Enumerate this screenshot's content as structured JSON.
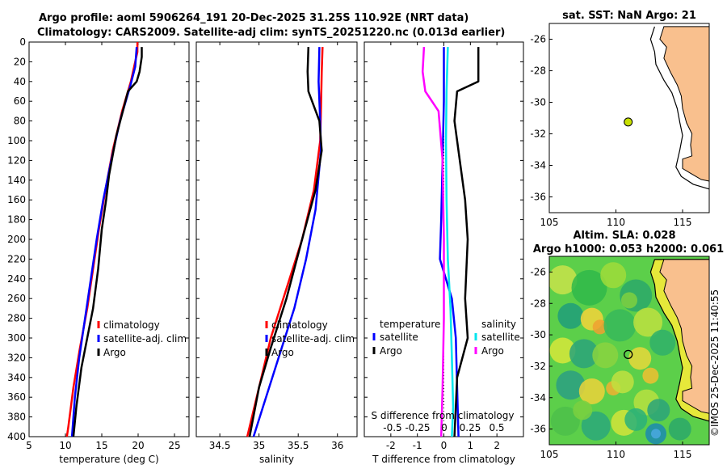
{
  "header": {
    "line1": "Argo profile: aoml 5906264_191 20-Dec-2025 31.25S 110.92E (NRT data)",
    "line2": "Climatology: CARS2009. Satellite-adj clim: synTS_20251220.nc (0.013d earlier)"
  },
  "colors": {
    "climatology": "#ff0000",
    "satellite": "#0000ff",
    "argo": "#000000",
    "sat_salinity": "#00e5ee",
    "argo_salinity": "#ff00ff",
    "land": "#f9c08e",
    "shelf": "#ffffff"
  },
  "chart_data": [
    {
      "id": "temperature",
      "type": "line",
      "xlabel": "temperature (deg C)",
      "ylabel": "",
      "xlim": [
        5,
        27
      ],
      "ylim": [
        0,
        400
      ],
      "y_reversed": true,
      "xticks": [
        5,
        10,
        15,
        20,
        25
      ],
      "yticks": [
        0,
        20,
        40,
        60,
        80,
        100,
        120,
        140,
        160,
        180,
        200,
        220,
        240,
        260,
        280,
        300,
        320,
        340,
        360,
        380,
        400
      ],
      "legend": {
        "position": "right",
        "entries": [
          "climatology",
          "satellite-adj. clim",
          "Argo"
        ]
      },
      "series": [
        {
          "name": "climatology",
          "color": "#ff0000",
          "points": [
            [
              19.9,
              0
            ],
            [
              19.9,
              10
            ],
            [
              19.0,
              40
            ],
            [
              17.8,
              70
            ],
            [
              16.5,
              110
            ],
            [
              15.5,
              150
            ],
            [
              14.6,
              190
            ],
            [
              13.8,
              230
            ],
            [
              13.0,
              270
            ],
            [
              12.0,
              310
            ],
            [
              11.1,
              350
            ],
            [
              10.4,
              390
            ],
            [
              10.2,
              400
            ]
          ]
        },
        {
          "name": "satellite-adj. clim",
          "color": "#0000ff",
          "points": [
            [
              19.8,
              5
            ],
            [
              19.6,
              25
            ],
            [
              18.9,
              45
            ],
            [
              17.5,
              80
            ],
            [
              16.3,
              120
            ],
            [
              15.2,
              160
            ],
            [
              14.3,
              200
            ],
            [
              13.5,
              240
            ],
            [
              12.7,
              280
            ],
            [
              11.9,
              320
            ],
            [
              11.3,
              360
            ],
            [
              10.9,
              400
            ]
          ]
        },
        {
          "name": "Argo",
          "color": "#000000",
          "points": [
            [
              20.5,
              5
            ],
            [
              20.5,
              15
            ],
            [
              20.2,
              30
            ],
            [
              19.8,
              40
            ],
            [
              18.6,
              50
            ],
            [
              17.9,
              70
            ],
            [
              17.0,
              95
            ],
            [
              16.5,
              115
            ],
            [
              16.0,
              135
            ],
            [
              15.6,
              160
            ],
            [
              15.0,
              190
            ],
            [
              14.5,
              230
            ],
            [
              13.8,
              270
            ],
            [
              13.0,
              300
            ],
            [
              12.2,
              330
            ],
            [
              11.5,
              370
            ],
            [
              11.1,
              400
            ]
          ]
        }
      ]
    },
    {
      "id": "salinity",
      "type": "line",
      "xlabel": "salinity",
      "ylabel": "",
      "xlim": [
        34.2,
        36.25
      ],
      "ylim": [
        0,
        400
      ],
      "y_reversed": true,
      "xticks": [
        34.5,
        35,
        35.5,
        36
      ],
      "legend": {
        "position": "right",
        "entries": [
          "climatology",
          "satellite-adj. clim",
          "Argo"
        ]
      },
      "series": [
        {
          "name": "climatology",
          "color": "#ff0000",
          "points": [
            [
              35.81,
              5
            ],
            [
              35.8,
              30
            ],
            [
              35.79,
              70
            ],
            [
              35.78,
              100
            ],
            [
              35.7,
              150
            ],
            [
              35.55,
              200
            ],
            [
              35.35,
              250
            ],
            [
              35.15,
              300
            ],
            [
              35.0,
              350
            ],
            [
              34.85,
              400
            ]
          ]
        },
        {
          "name": "satellite-adj. clim",
          "color": "#0000ff",
          "points": [
            [
              35.77,
              5
            ],
            [
              35.76,
              40
            ],
            [
              35.78,
              80
            ],
            [
              35.79,
              110
            ],
            [
              35.72,
              170
            ],
            [
              35.6,
              220
            ],
            [
              35.45,
              270
            ],
            [
              35.25,
              320
            ],
            [
              35.05,
              370
            ],
            [
              34.93,
              400
            ]
          ]
        },
        {
          "name": "Argo",
          "color": "#000000",
          "points": [
            [
              35.63,
              5
            ],
            [
              35.62,
              30
            ],
            [
              35.63,
              50
            ],
            [
              35.7,
              65
            ],
            [
              35.77,
              80
            ],
            [
              35.8,
              110
            ],
            [
              35.72,
              150
            ],
            [
              35.55,
              200
            ],
            [
              35.35,
              260
            ],
            [
              35.15,
              310
            ],
            [
              35.0,
              350
            ],
            [
              34.88,
              400
            ]
          ]
        }
      ]
    },
    {
      "id": "difference",
      "type": "line",
      "xlabel": "T difference from climatology",
      "ylabel": "",
      "xlim": [
        -3,
        3
      ],
      "ylim": [
        0,
        400
      ],
      "y_reversed": true,
      "xticks": [
        -2,
        -1,
        0,
        1,
        2
      ],
      "top_axis": {
        "label": "S difference from climatology",
        "ticks": [
          "-0.5",
          "-0.25",
          "0",
          "0.25",
          "0.5"
        ]
      },
      "legend": {
        "position": "bottom",
        "groups": [
          {
            "title": "temperature",
            "entries": [
              "satellite",
              "Argo"
            ]
          },
          {
            "title": "salinity",
            "entries": [
              "satellite",
              "Argo"
            ]
          }
        ]
      },
      "series": [
        {
          "name": "T satellite",
          "color": "#0000ff",
          "points": [
            [
              0,
              5
            ],
            [
              0,
              60
            ],
            [
              -0.05,
              120
            ],
            [
              -0.1,
              180
            ],
            [
              -0.15,
              220
            ],
            [
              0.3,
              260
            ],
            [
              0.45,
              300
            ],
            [
              0.5,
              350
            ],
            [
              0.55,
              400
            ]
          ]
        },
        {
          "name": "T Argo",
          "color": "#000000",
          "points": [
            [
              1.3,
              5
            ],
            [
              1.3,
              40
            ],
            [
              0.5,
              50
            ],
            [
              0.4,
              80
            ],
            [
              0.6,
              120
            ],
            [
              0.8,
              160
            ],
            [
              0.9,
              200
            ],
            [
              0.8,
              260
            ],
            [
              0.9,
              300
            ],
            [
              0.5,
              340
            ],
            [
              0.4,
              400
            ]
          ]
        },
        {
          "name": "S satellite",
          "color": "#00e5ee",
          "points": [
            [
              0.15,
              5
            ],
            [
              0.1,
              50
            ],
            [
              0.08,
              100
            ],
            [
              0.1,
              160
            ],
            [
              0.15,
              220
            ],
            [
              0.25,
              270
            ],
            [
              0.3,
              320
            ],
            [
              0.35,
              370
            ],
            [
              0.3,
              400
            ]
          ]
        },
        {
          "name": "S Argo",
          "color": "#ff00ff",
          "points": [
            [
              -0.75,
              5
            ],
            [
              -0.8,
              30
            ],
            [
              -0.7,
              50
            ],
            [
              -0.2,
              70
            ],
            [
              -0.05,
              120
            ],
            [
              0,
              200
            ],
            [
              0,
              280
            ],
            [
              -0.05,
              350
            ],
            [
              -0.1,
              400
            ]
          ]
        }
      ]
    },
    {
      "id": "sst_map",
      "type": "map",
      "title": "sat. SST: NaN Argo: 21",
      "xlim": [
        105,
        117
      ],
      "ylim": [
        -37,
        -25
      ],
      "xticks": [
        105,
        110,
        115
      ],
      "yticks": [
        -26,
        -28,
        -30,
        -32,
        -34,
        -36
      ],
      "argo_position": {
        "lon": 110.92,
        "lat": -31.25
      }
    },
    {
      "id": "sla_map",
      "type": "heatmap",
      "title_line1": "Altim. SLA: 0.028",
      "title_line2": "Argo h1000: 0.053 h2000: 0.061",
      "xlim": [
        105,
        117
      ],
      "ylim": [
        -37,
        -25
      ],
      "xticks": [
        105,
        110,
        115
      ],
      "yticks": [
        -26,
        -28,
        -30,
        -32,
        -34,
        -36
      ],
      "argo_position": {
        "lon": 110.92,
        "lat": -31.25
      }
    }
  ],
  "footer": {
    "stamp": "©IMOS 25-Dec-2025 11:40:55"
  }
}
